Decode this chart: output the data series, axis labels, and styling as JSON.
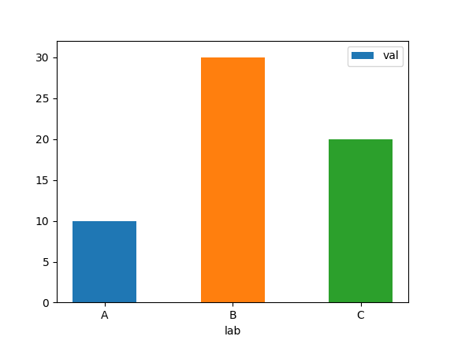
{
  "categories": [
    "A",
    "B",
    "C"
  ],
  "values": [
    10,
    30,
    20
  ],
  "bar_colors": [
    "#1f77b4",
    "#ff7f0e",
    "#2ca02c"
  ],
  "xlabel": "lab",
  "ylabel": "",
  "legend_label": "val",
  "ylim": [
    0,
    32
  ],
  "yticks": [
    0,
    5,
    10,
    15,
    20,
    25,
    30
  ],
  "bar_width": 0.5,
  "title": "",
  "figsize": [
    5.76,
    4.32
  ],
  "dpi": 100
}
